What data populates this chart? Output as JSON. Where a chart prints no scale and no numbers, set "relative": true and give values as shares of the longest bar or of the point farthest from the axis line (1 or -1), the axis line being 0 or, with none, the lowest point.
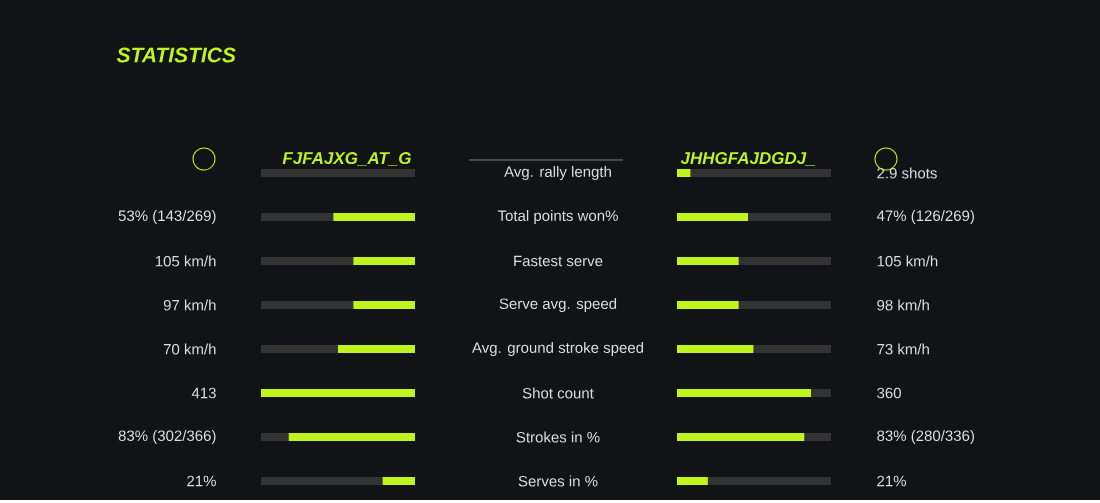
{
  "chart_data": [
    {
      "type": "bar",
      "orientation": "horizontal",
      "relative": true,
      "title": "STATISTICS",
      "grid": "y",
      "categories": [
        "Avg. rally length",
        "Total points won%",
        "Fastest serve",
        "Serve avg. speed",
        "Avg. ground stroke speed",
        "Shot count",
        "Strokes in %",
        "Serves in %"
      ],
      "annotations": [
        "53% (143/269)",
        "105 km/h",
        "97 km/h",
        "70 km/h",
        "413",
        "83% (302/366)",
        "21%"
      ],
      "series": [
        {
          "name": "FJFAJXG_AT_G",
          "color": "#bff41f",
          "values": [
            null,
            0.53,
            0.4,
            0.4,
            0.5,
            1,
            0.82,
            0.21
          ]
        }
      ]
    },
    {
      "type": "bar",
      "orientation": "horizontal",
      "relative": true,
      "grid": "y",
      "categories": [
        "2.9 shots",
        "47% (126/269)",
        "105 km/h",
        "98 km/h",
        "73 km/h",
        "360",
        "83% (280/336)",
        "21%"
      ],
      "series": [
        {
          "name": "JHHGFAJDGDJ_",
          "color": "#bff41f",
          "values": [
            0.1,
            0.53,
            0.46,
            0.46,
            0.57,
            1,
            0.95,
            0.23
          ]
        }
      ]
    }
  ]
}
